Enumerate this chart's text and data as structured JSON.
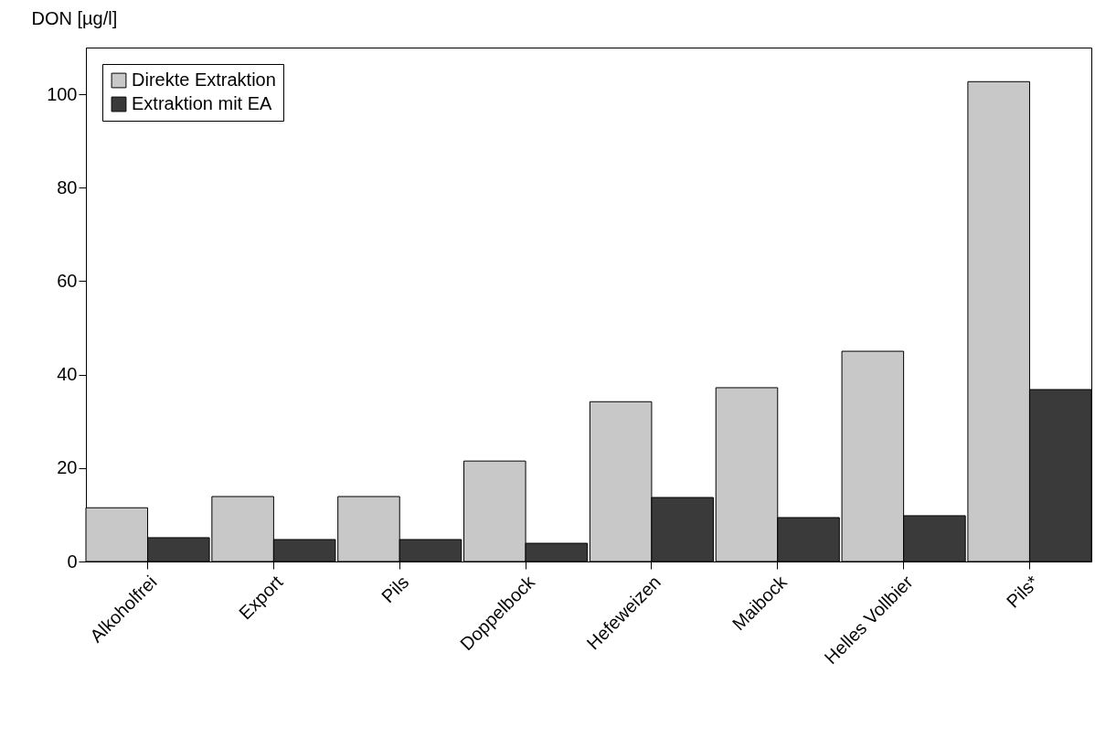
{
  "chart_data": {
    "type": "bar",
    "ylabel": "DON [µg/l]",
    "categories": [
      "Alkoholfrei",
      "Export",
      "Pils",
      "Doppelbock",
      "Hefeweizen",
      "Maibock",
      "Helles Vollbier",
      "Pils*"
    ],
    "series": [
      {
        "name": "Direkte Extraktion",
        "color": "#c8c8c8",
        "values": [
          11.5,
          13.9,
          13.9,
          21.5,
          34.2,
          37.2,
          45,
          102.7
        ]
      },
      {
        "name": "Extraktion mit EA",
        "color": "#3a3a3a",
        "values": [
          5.1,
          4.7,
          4.7,
          3.9,
          13.7,
          9.4,
          9.8,
          36.8
        ]
      }
    ],
    "ylim": [
      0,
      110
    ],
    "yticks": [
      0,
      20,
      40,
      60,
      80,
      100
    ],
    "grid": false,
    "legend": "top left"
  }
}
